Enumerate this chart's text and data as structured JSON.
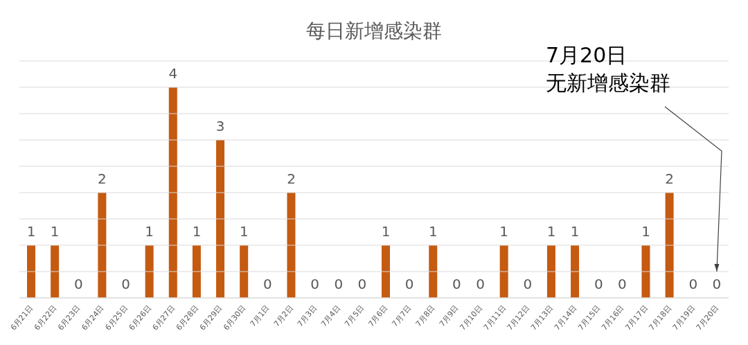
{
  "chart_data": {
    "type": "bar",
    "title": "每日新增感染群",
    "categories": [
      "6月21日",
      "6月22日",
      "6月23日",
      "6月24日",
      "6月25日",
      "6月26日",
      "6月27日",
      "6月28日",
      "6月29日",
      "6月30日",
      "7月1日",
      "7月2日",
      "7月3日",
      "7月4日",
      "7月5日",
      "7月6日",
      "7月7日",
      "7月8日",
      "7月9日",
      "7月10日",
      "7月11日",
      "7月12日",
      "7月13日",
      "7月14日",
      "7月15日",
      "7月16日",
      "7月17日",
      "7月18日",
      "7月19日",
      "7月20日"
    ],
    "values": [
      1,
      1,
      0,
      2,
      0,
      1,
      4,
      1,
      3,
      1,
      0,
      2,
      0,
      0,
      0,
      1,
      0,
      1,
      0,
      0,
      1,
      0,
      1,
      1,
      0,
      0,
      1,
      2,
      0,
      0
    ],
    "color": "#c55a11",
    "ylim": [
      0,
      4.5
    ],
    "yticks": [
      0,
      {
        "value": 0.5,
        "label": null
      },
      {
        "value": 1,
        "label": null
      },
      {
        "value": 1.5,
        "label": null
      },
      {
        "value": 2,
        "label": null
      },
      {
        "value": 2.5,
        "label": null
      },
      {
        "value": 3,
        "label": null
      },
      {
        "value": 3.5,
        "label": null
      },
      {
        "value": 4,
        "label": null
      },
      {
        "value": 4.5,
        "label": null
      }
    ],
    "grid": "y",
    "tick_labels": "x",
    "data_labels": true,
    "legend": false,
    "annotations": [
      "7月20日",
      "无新增感染群"
    ]
  }
}
